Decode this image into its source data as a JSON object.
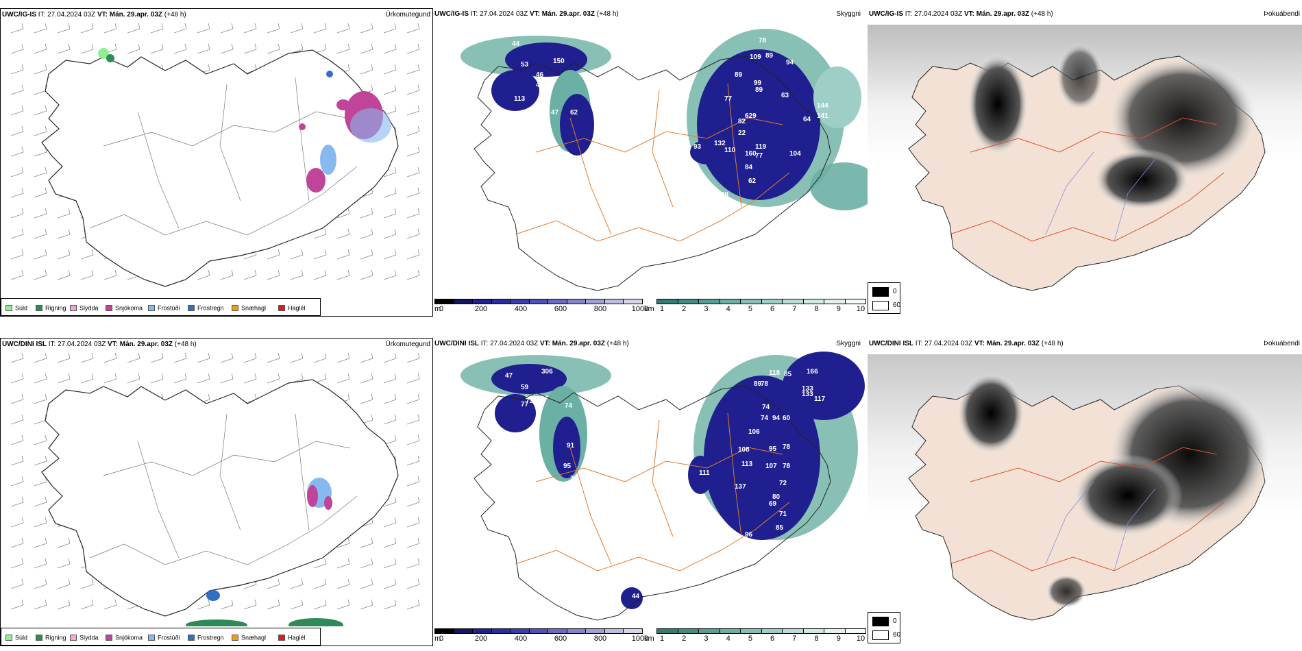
{
  "rows": [
    {
      "model": "UWC/IG-IS",
      "it_prefix": "IT:",
      "it_value": "27.04.2024 03Z",
      "vt_prefix": "VT:",
      "vt_value": "Mán. 29.apr. 03Z",
      "lead": "(+48 h)",
      "vis_labels": [
        "44",
        "53",
        "150",
        "46",
        "46",
        "113",
        "04",
        "47",
        "62",
        "80",
        "54",
        "58",
        "132",
        "78",
        "174",
        "109",
        "89",
        "94",
        "89",
        "99",
        "89",
        "63",
        "77",
        "629",
        "82",
        "22",
        "132",
        "93",
        "119",
        "160",
        "110",
        "104",
        "77",
        "84",
        "62",
        "69",
        "64",
        "144",
        "141",
        "59"
      ]
    },
    {
      "model": "UWC/DINI ISL",
      "it_prefix": "IT:",
      "it_value": "27.04.2024 03Z",
      "vt_prefix": "VT:",
      "vt_value": "Mán. 29.apr. 03Z",
      "lead": "(+48 h)",
      "vis_labels": [
        "47",
        "306",
        "59",
        "77",
        "73",
        "74",
        "91",
        "95",
        "7",
        "118",
        "85",
        "166",
        "89",
        "78",
        "133",
        "133",
        "74",
        "117",
        "94",
        "74",
        "106",
        "60",
        "108",
        "111",
        "113",
        "78",
        "95",
        "107",
        "137",
        "78",
        "72",
        "80",
        "69",
        "71",
        "85",
        "96",
        "215",
        "44"
      ]
    }
  ],
  "fields": {
    "precip_type": "Úrkomutegund",
    "visibility": "Skyggni",
    "fog": "Þokuábendi"
  },
  "precip_legend": [
    {
      "label": "Súld",
      "color": "#90ee90"
    },
    {
      "label": "Rigning",
      "color": "#2e8b57"
    },
    {
      "label": "Slydda",
      "color": "#f4a6d7"
    },
    {
      "label": "Snjókoma",
      "color": "#c0449a"
    },
    {
      "label": "Frostúði",
      "color": "#87b8f0"
    },
    {
      "label": "Frostregn",
      "color": "#2f6fc4"
    },
    {
      "label": "Snæhagl",
      "color": "#f39c12"
    },
    {
      "label": "Haglél",
      "color": "#e41a1c"
    }
  ],
  "vis_m": {
    "unit": "m",
    "ticks": [
      "0",
      "200",
      "400",
      "600",
      "800",
      "1000"
    ],
    "colors": [
      "#000000",
      "#141466",
      "#1f1f8f",
      "#2b2ba3",
      "#3b3bb0",
      "#5050b8",
      "#6a6ac2",
      "#8585cc",
      "#a0a0d6",
      "#bcbce0",
      "#d6d6ea"
    ]
  },
  "vis_km": {
    "unit": "km",
    "ticks": [
      "1",
      "2",
      "3",
      "4",
      "5",
      "6",
      "7",
      "8",
      "9",
      "10"
    ],
    "colors": [
      "#2f7f76",
      "#3f8e85",
      "#55a094",
      "#6bb0a4",
      "#84c0b5",
      "#9ecfc6",
      "#b7ddd6",
      "#cfe9e4",
      "#e3f2ef",
      "#f4fbfa"
    ]
  },
  "fog_legend": [
    {
      "label": "0",
      "color": "#000000"
    },
    {
      "label": "60",
      "color": "#ffffff"
    }
  ]
}
